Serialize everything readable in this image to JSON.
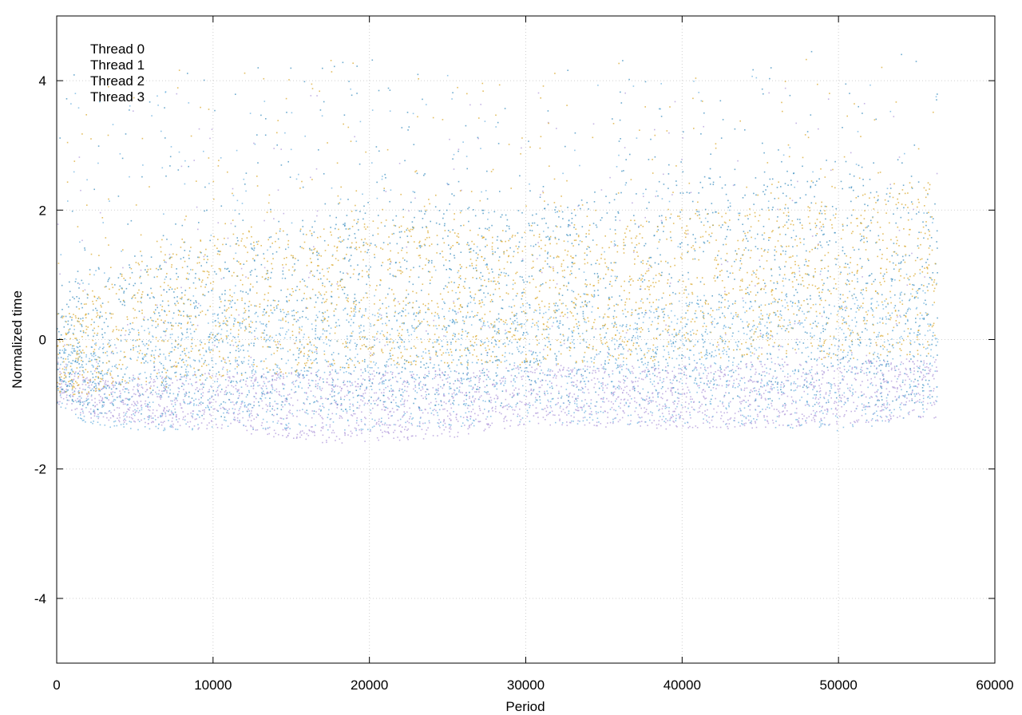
{
  "chart_data": {
    "type": "scatter",
    "title": "",
    "xlabel": "Period",
    "ylabel": "Normalized time",
    "xlim": [
      0,
      60000
    ],
    "ylim": [
      -5,
      5
    ],
    "x_ticks": [
      0,
      10000,
      20000,
      30000,
      40000,
      50000,
      60000
    ],
    "x_tick_labels": [
      "0",
      "10000",
      "20000",
      "30000",
      "40000",
      "50000",
      "60000"
    ],
    "y_ticks": [
      -4,
      -2,
      0,
      2,
      4
    ],
    "y_tick_labels": [
      "-4",
      "-2",
      "0",
      "2",
      "4"
    ],
    "grid": true,
    "legend_position": "top-left",
    "data_x_max": 56300,
    "series": [
      {
        "name": "Thread 0",
        "color": "#b29bdb",
        "summary": [
          {
            "x": 0,
            "low": -1.0,
            "high": -0.2
          },
          {
            "x": 2000,
            "low": -1.2,
            "high": -0.6
          },
          {
            "x": 5000,
            "low": -1.3,
            "high": -0.6
          },
          {
            "x": 10000,
            "low": -1.4,
            "high": -0.5
          },
          {
            "x": 17500,
            "low": -1.6,
            "high": -0.5
          },
          {
            "x": 25700,
            "low": -1.5,
            "high": -0.5
          },
          {
            "x": 30000,
            "low": -1.3,
            "high": -0.4
          },
          {
            "x": 41000,
            "low": -1.4,
            "high": -0.4
          },
          {
            "x": 50000,
            "low": -1.3,
            "high": -0.3
          },
          {
            "x": 56300,
            "low": -1.2,
            "high": -0.3
          }
        ]
      },
      {
        "name": "Thread 1",
        "color": "#3d8fbf",
        "summary": [
          {
            "x": 0,
            "low": -0.9,
            "high": 0.6
          },
          {
            "x": 2000,
            "low": -1.1,
            "high": 0.8
          },
          {
            "x": 5000,
            "low": -1.2,
            "high": 1.2
          },
          {
            "x": 10000,
            "low": -1.2,
            "high": 1.5
          },
          {
            "x": 20000,
            "low": -1.1,
            "high": 2.0
          },
          {
            "x": 30000,
            "low": -1.0,
            "high": 2.0
          },
          {
            "x": 40000,
            "low": -1.0,
            "high": 2.5
          },
          {
            "x": 50000,
            "low": -1.0,
            "high": 2.5
          },
          {
            "x": 56300,
            "low": -1.0,
            "high": 2.0
          }
        ]
      },
      {
        "name": "Thread 2",
        "color": "#d9a82e",
        "summary": [
          {
            "x": 0,
            "low": -0.8,
            "high": 0.4
          },
          {
            "x": 2000,
            "low": -0.9,
            "high": 0.6
          },
          {
            "x": 5000,
            "low": -0.8,
            "high": 1.2
          },
          {
            "x": 10000,
            "low": -0.6,
            "high": 1.6
          },
          {
            "x": 20000,
            "low": -0.4,
            "high": 1.8
          },
          {
            "x": 30000,
            "low": -0.4,
            "high": 1.6
          },
          {
            "x": 40000,
            "low": -0.3,
            "high": 2.0
          },
          {
            "x": 50000,
            "low": -0.3,
            "high": 2.0
          },
          {
            "x": 56300,
            "low": -0.2,
            "high": 2.5
          }
        ]
      },
      {
        "name": "Thread 3",
        "color": "#6fb3e0",
        "summary": [
          {
            "x": 0,
            "low": -1.0,
            "high": 0.0
          },
          {
            "x": 2000,
            "low": -1.3,
            "high": -0.2
          },
          {
            "x": 5000,
            "low": -1.4,
            "high": 0.2
          },
          {
            "x": 10000,
            "low": -1.4,
            "high": 0.4
          },
          {
            "x": 20000,
            "low": -1.4,
            "high": 0.5
          },
          {
            "x": 30000,
            "low": -1.3,
            "high": 0.6
          },
          {
            "x": 40000,
            "low": -1.3,
            "high": 0.6
          },
          {
            "x": 50000,
            "low": -1.4,
            "high": 0.6
          },
          {
            "x": 56300,
            "low": -1.2,
            "high": 0.8
          }
        ]
      }
    ]
  }
}
